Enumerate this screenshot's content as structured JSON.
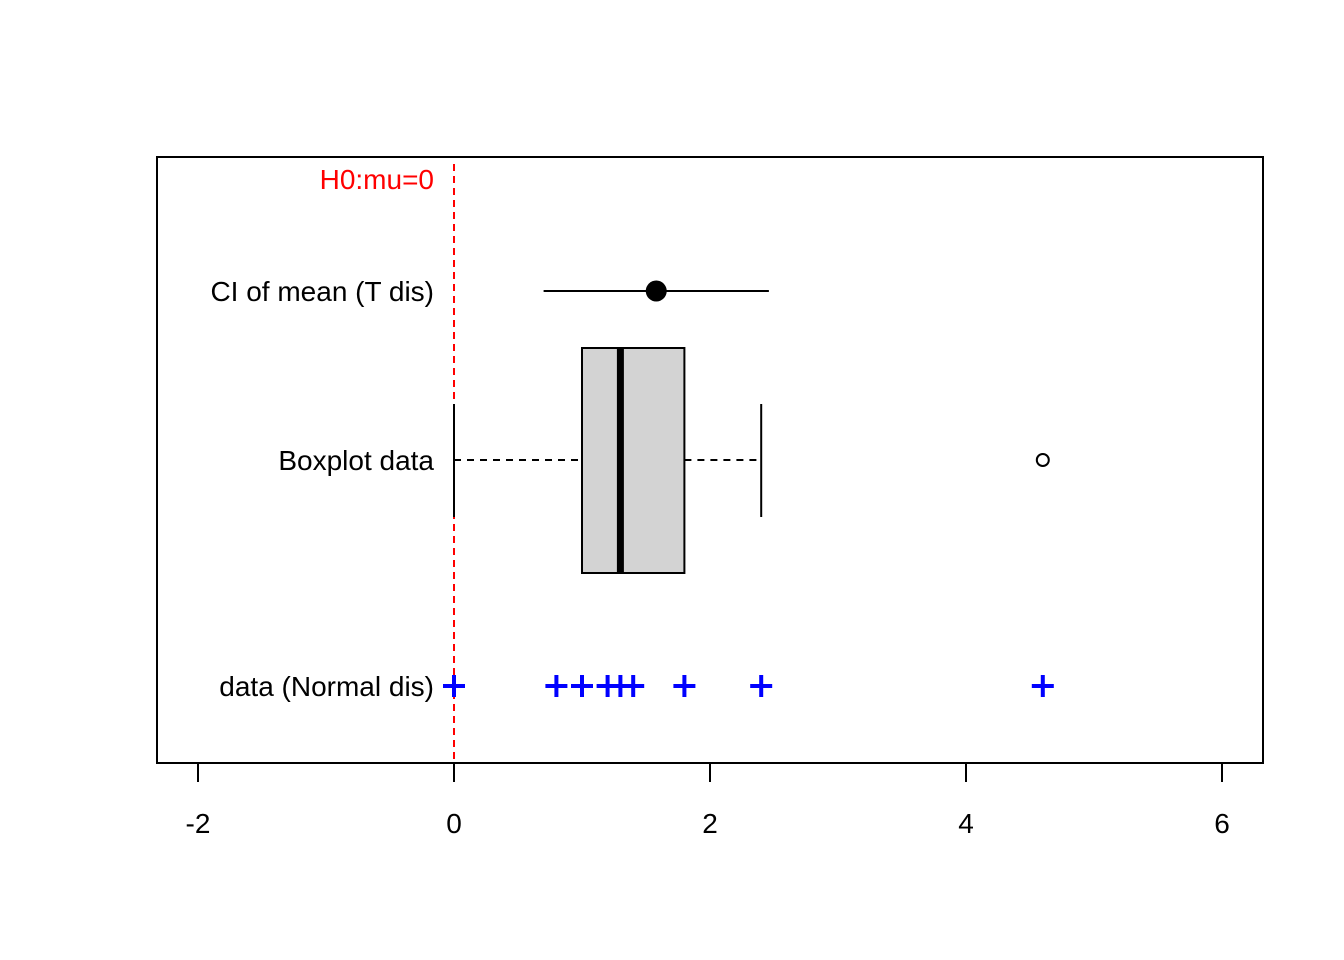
{
  "chart_data": {
    "type": "boxplot",
    "xlim": [
      -2,
      6
    ],
    "x_ticks": [
      -2,
      0,
      2,
      4,
      6
    ],
    "x_tick_labels": [
      "-2",
      "0",
      "2",
      "4",
      "6"
    ],
    "grid": false,
    "rows": {
      "h0": "H0:mu=0",
      "ci": "CI of mean (T dis)",
      "box": "Boxplot data",
      "data": "data (Normal dis)"
    },
    "h0_value": 0,
    "ci": {
      "lower": 0.7,
      "mean": 1.58,
      "upper": 2.46
    },
    "boxplot": {
      "whisker_low": 0.0,
      "q1": 1.0,
      "median": 1.3,
      "q3": 1.8,
      "whisker_high": 2.4,
      "outliers": [
        4.6
      ]
    },
    "data_points": [
      0.0,
      0.8,
      1.0,
      1.2,
      1.3,
      1.4,
      1.8,
      2.4,
      4.6
    ],
    "colors": {
      "h0": "#ff0000",
      "points": "#0000ff",
      "box_fill": "#d3d3d3",
      "axis": "#000000"
    }
  }
}
